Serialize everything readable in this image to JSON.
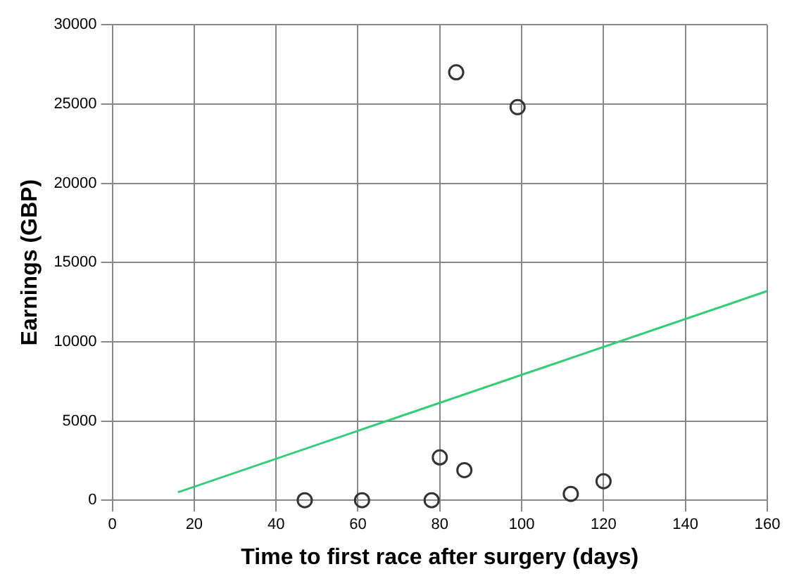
{
  "chart_data": {
    "type": "scatter",
    "xlabel": "Time to first race after surgery (days)",
    "ylabel": "Earnings (GBP)",
    "xlim": [
      0,
      160
    ],
    "xticks": [
      0,
      20,
      40,
      60,
      80,
      100,
      120,
      140,
      160
    ],
    "ylim": [
      0,
      30000
    ],
    "yticks": [
      0,
      5000,
      10000,
      15000,
      20000,
      25000,
      30000
    ],
    "grid": true,
    "legend": false,
    "series": [
      {
        "marker": "circle",
        "color": "#333333",
        "x": [
          47,
          61,
          78,
          80,
          86,
          84,
          99,
          112,
          120
        ],
        "values": [
          0,
          0,
          0,
          2700,
          1900,
          27000,
          24800,
          400,
          1200
        ]
      },
      {
        "type": "line",
        "marker": "none",
        "color": "#33cc77",
        "x": [
          16,
          160
        ],
        "values": [
          500,
          13200
        ]
      }
    ]
  }
}
